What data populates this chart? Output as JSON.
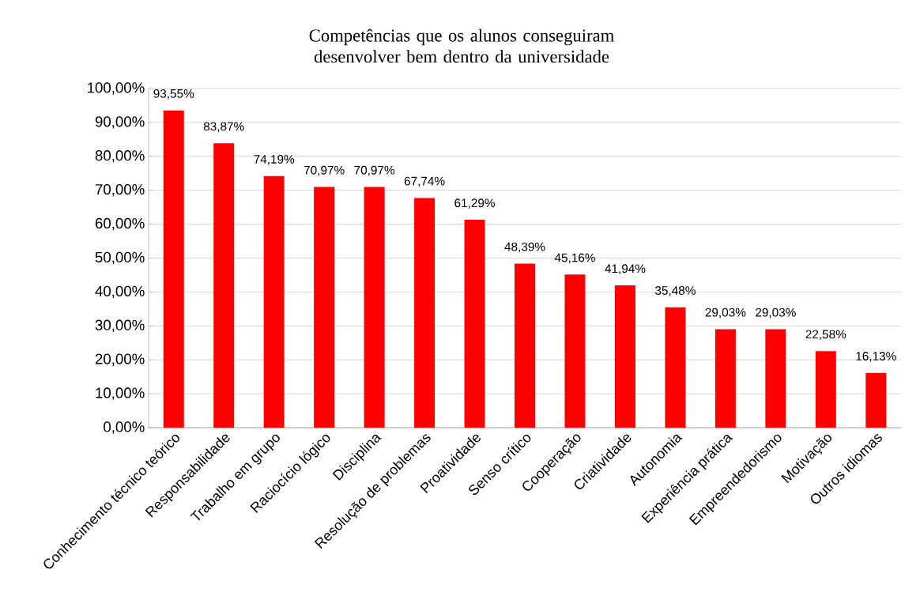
{
  "chart_data": {
    "type": "bar",
    "title": "Competências que os alunos conseguiram desenvolver bem dentro da universidade",
    "categories": [
      "Conhecimento técnico teórico",
      "Responsabilidade",
      "Trabalho em grupo",
      "Raciocício lógico",
      "Disciplina",
      "Resolução de problemas",
      "Proatividade",
      "Senso crítico",
      "Cooperação",
      "Criatividade",
      "Autonomia",
      "Experiência prática",
      "Empreendedorismo",
      "Motivação",
      "Outros idiomas"
    ],
    "values": [
      93.55,
      83.87,
      74.19,
      70.97,
      70.97,
      67.74,
      61.29,
      48.39,
      45.16,
      41.94,
      35.48,
      29.03,
      29.03,
      22.58,
      16.13
    ],
    "value_labels": [
      "93,55%",
      "83,87%",
      "74,19%",
      "70,97%",
      "70,97%",
      "67,74%",
      "61,29%",
      "48,39%",
      "45,16%",
      "41,94%",
      "35,48%",
      "29,03%",
      "29,03%",
      "22,58%",
      "16,13%"
    ],
    "color": "#ff0000",
    "ylim": [
      0,
      100
    ],
    "yticks": [
      {
        "value": 0,
        "label": "0,00%"
      },
      {
        "value": 10,
        "label": "10,00%"
      },
      {
        "value": 20,
        "label": "20,00%"
      },
      {
        "value": 30,
        "label": "30,00%"
      },
      {
        "value": 40,
        "label": "40,00%"
      },
      {
        "value": 50,
        "label": "50,00%"
      },
      {
        "value": 60,
        "label": "60,00%"
      },
      {
        "value": 70,
        "label": "70,00%"
      },
      {
        "value": 80,
        "label": "80,00%"
      },
      {
        "value": 90,
        "label": "90,00%"
      },
      {
        "value": 100,
        "label": "100,00%"
      }
    ],
    "grid": "y"
  }
}
